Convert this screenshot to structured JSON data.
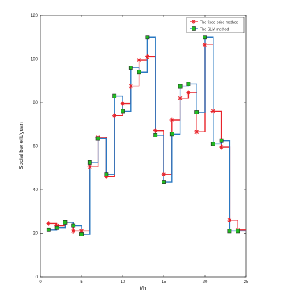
{
  "chart_data": {
    "type": "line",
    "step": true,
    "xlabel": "t/h",
    "ylabel": "Social benefit/yuan",
    "xlim": [
      0,
      25
    ],
    "ylim": [
      0,
      120
    ],
    "xticks": [
      0,
      5,
      10,
      15,
      20,
      25
    ],
    "yticks": [
      0,
      20,
      40,
      60,
      80,
      100,
      120
    ],
    "grid": false,
    "legend_position": "top-right",
    "x": [
      1,
      2,
      3,
      4,
      5,
      6,
      7,
      8,
      9,
      10,
      11,
      12,
      13,
      14,
      15,
      16,
      17,
      18,
      19,
      20,
      21,
      22,
      23,
      24
    ],
    "series": [
      {
        "name": "The fixed price method",
        "marker": "asterisk",
        "color": "#e8242b",
        "values": [
          24.5,
          23.5,
          25,
          21,
          21,
          50.5,
          64,
          46,
          74,
          79.5,
          87.5,
          99.5,
          101,
          67,
          47,
          72,
          82,
          84.5,
          66.5,
          106.5,
          76,
          59.5,
          26,
          21.5
        ]
      },
      {
        "name": "The SLM method",
        "marker": "square",
        "color": "#2a78c2",
        "marker_fill": "#22bb22",
        "values": [
          21.5,
          22.5,
          25,
          23.5,
          19.5,
          52.5,
          63.5,
          47,
          83,
          76,
          96,
          94,
          110,
          65,
          43.5,
          65.5,
          87.5,
          88.5,
          75.5,
          110,
          61,
          62.5,
          21,
          21
        ]
      }
    ]
  }
}
